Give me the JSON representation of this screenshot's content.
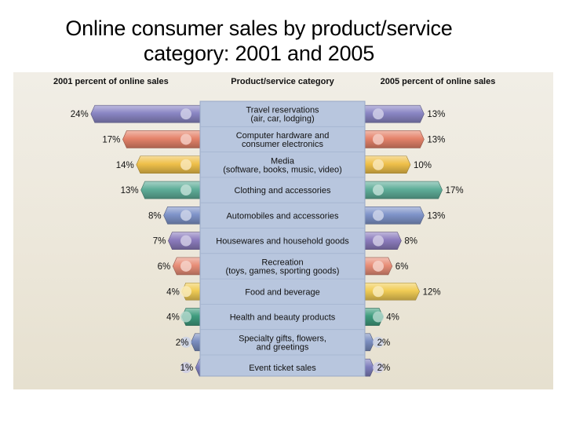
{
  "title_lines": [
    "Online consumer sales by product/service",
    "category:  2001 and 2005"
  ],
  "headers": {
    "left": "2001 percent of online sales",
    "center": "Product/service category",
    "right": "2005 percent of online sales"
  },
  "chart_data": {
    "type": "bar",
    "layout": "butterfly",
    "categories": [
      "Travel reservations\n(air, car, lodging)",
      "Computer hardware and\nconsumer electronics",
      "Media\n(software, books, music, video)",
      "Clothing and accessories",
      "Automobiles and accessories",
      "Housewares and household goods",
      "Recreation\n(toys, games, sporting goods)",
      "Food and beverage",
      "Health and beauty products",
      "Specialty gifts, flowers,\nand greetings",
      "Event ticket sales"
    ],
    "series": [
      {
        "name": "2001 percent of online sales",
        "values": [
          24,
          17,
          14,
          13,
          8,
          7,
          6,
          4,
          4,
          2,
          1
        ],
        "labels": [
          "24%",
          "17%",
          "14%",
          "13%",
          "8%",
          "7%",
          "6%",
          "4%",
          "4%",
          "2%",
          "1%"
        ]
      },
      {
        "name": "2005 percent of online sales",
        "values": [
          13,
          13,
          10,
          17,
          13,
          8,
          6,
          12,
          4,
          2,
          2
        ],
        "labels": [
          "13%",
          "13%",
          "10%",
          "17%",
          "13%",
          "8%",
          "6%",
          "12%",
          "4%",
          "2%",
          "2%"
        ]
      }
    ],
    "colors": [
      "#8a86c4",
      "#e5836a",
      "#efc04a",
      "#5fae99",
      "#7f94c9",
      "#8c7cbd",
      "#e88e78",
      "#f1cc55",
      "#3f9c7e",
      "#7b8ec0",
      "#7f7fbd"
    ]
  }
}
